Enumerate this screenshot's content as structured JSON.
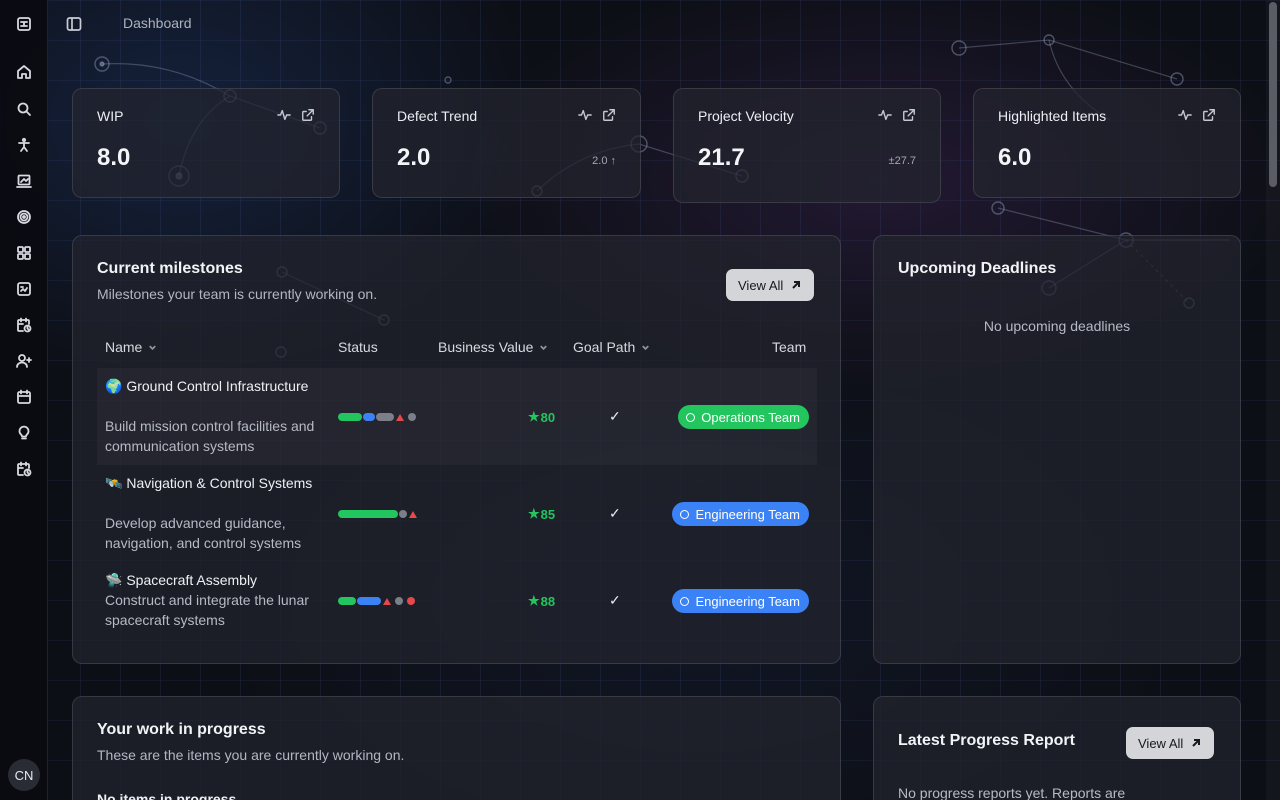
{
  "breadcrumb": "Dashboard",
  "user": {
    "initials": "CN"
  },
  "stats": [
    {
      "title": "WIP",
      "value": "8.0",
      "sub": ""
    },
    {
      "title": "Defect Trend",
      "value": "2.0",
      "sub": "2.0 ↑"
    },
    {
      "title": "Project Velocity",
      "value": "21.7",
      "sub": "±27.7"
    },
    {
      "title": "Highlighted Items",
      "value": "6.0",
      "sub": ""
    }
  ],
  "milestones": {
    "title": "Current milestones",
    "subtitle": "Milestones your team is currently working on.",
    "view_all": "View All",
    "columns": {
      "name": "Name",
      "status": "Status",
      "business_value": "Business Value",
      "goal_path": "Goal Path",
      "team": "Team"
    },
    "rows": [
      {
        "emoji": "🌍",
        "name": "Ground Control Infrastructure",
        "description": "Build mission control facilities and communication systems",
        "business_value": "80",
        "goal_path": "✓",
        "team": "Operations Team",
        "team_color": "#22c55e"
      },
      {
        "emoji": "🛰️",
        "name": "Navigation & Control Systems",
        "description": "Develop advanced guidance, navigation, and control systems",
        "business_value": "85",
        "goal_path": "✓",
        "team": "Engineering Team",
        "team_color": "#3b82f6"
      },
      {
        "emoji": "🛸",
        "name": "Spacecraft Assembly",
        "description": "Construct and integrate the lunar spacecraft systems",
        "business_value": "88",
        "goal_path": "✓",
        "team": "Engineering Team",
        "team_color": "#3b82f6"
      }
    ]
  },
  "deadlines": {
    "title": "Upcoming Deadlines",
    "empty": "No upcoming deadlines"
  },
  "work": {
    "title": "Your work in progress",
    "subtitle": "These are the items you are currently working on.",
    "empty": "No items in progress"
  },
  "report": {
    "title": "Latest Progress Report",
    "view_all": "View All",
    "empty": "No progress reports yet. Reports are"
  },
  "colors": {
    "green": "#22c55e",
    "blue": "#3b82f6",
    "gray": "#7b7f89",
    "red": "#e5484d"
  },
  "icons": [
    "home-icon",
    "search-icon",
    "accessibility-icon",
    "chart-board-icon",
    "target-icon",
    "grid-icon",
    "report-icon",
    "calendar-clock-icon",
    "user-plus-icon",
    "calendar-icon",
    "lightbulb-icon",
    "calendar-clock-icon"
  ]
}
